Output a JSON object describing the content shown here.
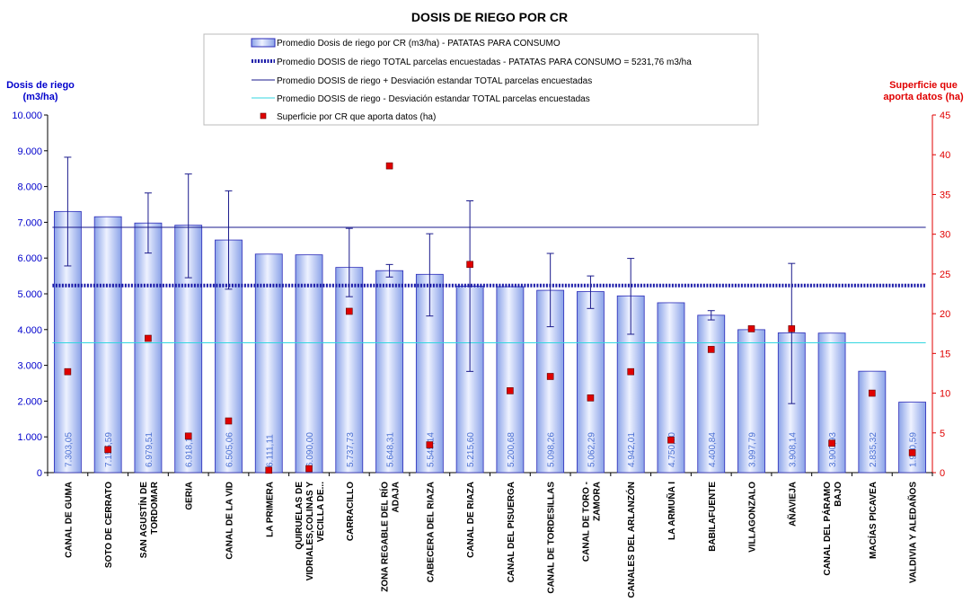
{
  "chart_data": {
    "type": "bar",
    "title": "DOSIS DE RIEGO POR CR",
    "ylabel": [
      "Dosis de riego",
      "(m3/ha)"
    ],
    "y2label": [
      "Superficie que",
      "aporta datos (ha)"
    ],
    "ylim": [
      0,
      10000
    ],
    "y2lim": [
      0,
      45
    ],
    "yticks": [
      "0",
      "1.000",
      "2.000",
      "3.000",
      "4.000",
      "5.000",
      "6.000",
      "7.000",
      "8.000",
      "9.000",
      "10.000"
    ],
    "y2ticks": [
      "0",
      "5",
      "10",
      "15",
      "20",
      "25",
      "30",
      "35",
      "40",
      "45"
    ],
    "grid": false,
    "legend_position": "top",
    "colors": {
      "bar_fill": "#b8c8f4",
      "bar_stroke": "#2a2ab8",
      "mean_line": "#1a1aa8",
      "plus_sd": "#1a1a8c",
      "minus_sd": "#33d6e0",
      "marker": "#e00000",
      "axis_left_label": "#0000cc",
      "axis_right": "#e00000",
      "bar_label": "#4a6fd4"
    },
    "categories": [
      [
        "CANAL DE GUMA"
      ],
      [
        "SOTO DE CERRATO"
      ],
      [
        "SAN AGUSTÍN DE",
        "TORDOMAR"
      ],
      [
        "GERIA"
      ],
      [
        "CANAL DE LA VID"
      ],
      [
        "LA PRIMERA"
      ],
      [
        "QUIRUELAS DE",
        "VIDRIALES,COLINAS Y",
        "VECILLA DE..."
      ],
      [
        "CARRACILLO"
      ],
      [
        "ZONA REGABLE DEL RÍO",
        "ADAJA"
      ],
      [
        "CABECERA DEL RIAZA"
      ],
      [
        "CANAL DE RIAZA"
      ],
      [
        "CANAL DEL PISUERGA"
      ],
      [
        "CANAL DE TORDESILLAS"
      ],
      [
        "CANAL DE TORO -",
        "ZAMORA"
      ],
      [
        "CANALES DEL ARLANZÓN"
      ],
      [
        "LA ARMUÑA I"
      ],
      [
        "BABILAFUENTE"
      ],
      [
        "VILLAGONZALO"
      ],
      [
        "AÑAVIEJA"
      ],
      [
        "CANAL DEL PÁRAMO",
        "BAJO"
      ],
      [
        "MACÍAS PICAVEA"
      ],
      [
        "VALDIVIA Y ALEDAÑOS"
      ]
    ],
    "series": [
      {
        "name": "Promedio Dosis de riego por CR (m3/ha) - PATATAS PARA CONSUMO",
        "type": "bar",
        "values": [
          7303.05,
          7155.59,
          6979.51,
          6918.13,
          6505.06,
          6111.11,
          6090.0,
          5737.73,
          5648.31,
          5545.14,
          5215.6,
          5200.68,
          5098.26,
          5062.29,
          4942.01,
          4750.0,
          4400.84,
          3997.79,
          3908.14,
          3900.93,
          2835.32,
          1970.59
        ],
        "value_labels": [
          "7.303,05",
          "7.155,59",
          "6.979,51",
          "6.918,13",
          "6.505,06",
          "6.111,11",
          "6.090,00",
          "5.737,73",
          "5.648,31",
          "5.545,14",
          "5.215,60",
          "5.200,68",
          "5.098,26",
          "5.062,29",
          "4.942,01",
          "4.750,00",
          "4.400,84",
          "3.997,79",
          "3.908,14",
          "3.900,93",
          "2.835,32",
          "1.970,59"
        ],
        "error_bars": [
          [
            5780,
            8820
          ],
          null,
          [
            6140,
            7820
          ],
          [
            5450,
            8350
          ],
          [
            5130,
            7880
          ],
          null,
          null,
          [
            4920,
            6830
          ],
          [
            5470,
            5820
          ],
          [
            4380,
            6680
          ],
          [
            2830,
            7600
          ],
          null,
          [
            4080,
            6130
          ],
          [
            4590,
            5500
          ],
          [
            3870,
            5990
          ],
          null,
          [
            4270,
            4530
          ],
          null,
          [
            1930,
            5850
          ],
          null,
          null,
          null
        ]
      },
      {
        "name": "Promedio DOSIS de riego TOTAL parcelas encuestadas - PATATAS PARA CONSUMO = 5231,76 m3/ha",
        "type": "hline",
        "value": 5231.76
      },
      {
        "name": "Promedio DOSIS de riego + Desviación estandar TOTAL parcelas encuestadas",
        "type": "hline",
        "value": 6860
      },
      {
        "name": "Promedio DOSIS de riego - Desviación estandar TOTAL parcelas encuestadas",
        "type": "hline",
        "value": 3630
      },
      {
        "name": "Superficie por CR que aporta datos (ha)",
        "type": "scatter",
        "axis": "right",
        "values": [
          12.7,
          2.9,
          16.9,
          4.6,
          6.5,
          0.3,
          0.5,
          20.3,
          38.6,
          3.5,
          26.2,
          10.3,
          12.1,
          9.4,
          12.7,
          4.1,
          15.5,
          18.1,
          18.1,
          3.7,
          10.0,
          2.5
        ]
      }
    ]
  }
}
